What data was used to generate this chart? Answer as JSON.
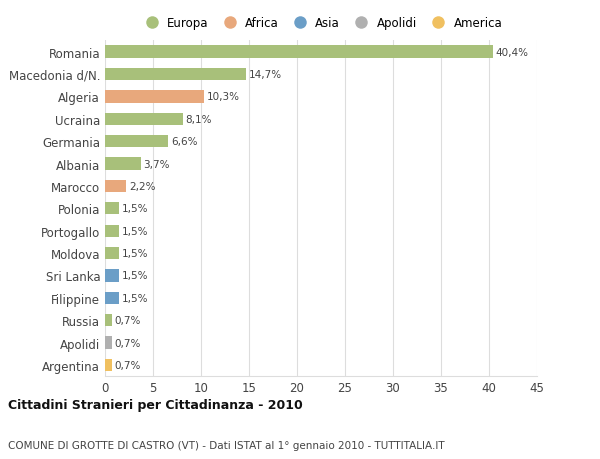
{
  "categories": [
    "Romania",
    "Macedonia d/N.",
    "Algeria",
    "Ucraina",
    "Germania",
    "Albania",
    "Marocco",
    "Polonia",
    "Portogallo",
    "Moldova",
    "Sri Lanka",
    "Filippine",
    "Russia",
    "Apolidi",
    "Argentina"
  ],
  "values": [
    40.4,
    14.7,
    10.3,
    8.1,
    6.6,
    3.7,
    2.2,
    1.5,
    1.5,
    1.5,
    1.5,
    1.5,
    0.7,
    0.7,
    0.7
  ],
  "labels": [
    "40,4%",
    "14,7%",
    "10,3%",
    "8,1%",
    "6,6%",
    "3,7%",
    "2,2%",
    "1,5%",
    "1,5%",
    "1,5%",
    "1,5%",
    "1,5%",
    "0,7%",
    "0,7%",
    "0,7%"
  ],
  "colors": [
    "#a8c07a",
    "#a8c07a",
    "#e8a87c",
    "#a8c07a",
    "#a8c07a",
    "#a8c07a",
    "#e8a87c",
    "#a8c07a",
    "#a8c07a",
    "#a8c07a",
    "#6b9ec7",
    "#6b9ec7",
    "#a8c07a",
    "#b0b0b0",
    "#f0c060"
  ],
  "legend_labels": [
    "Europa",
    "Africa",
    "Asia",
    "Apolidi",
    "America"
  ],
  "legend_colors": [
    "#a8c07a",
    "#e8a87c",
    "#6b9ec7",
    "#b0b0b0",
    "#f0c060"
  ],
  "title": "Cittadini Stranieri per Cittadinanza - 2010",
  "subtitle": "COMUNE DI GROTTE DI CASTRO (VT) - Dati ISTAT al 1° gennaio 2010 - TUTTITALIA.IT",
  "xlim": [
    0,
    45
  ],
  "xticks": [
    0,
    5,
    10,
    15,
    20,
    25,
    30,
    35,
    40,
    45
  ],
  "background_color": "#ffffff",
  "bar_height": 0.55,
  "grid_color": "#dddddd"
}
